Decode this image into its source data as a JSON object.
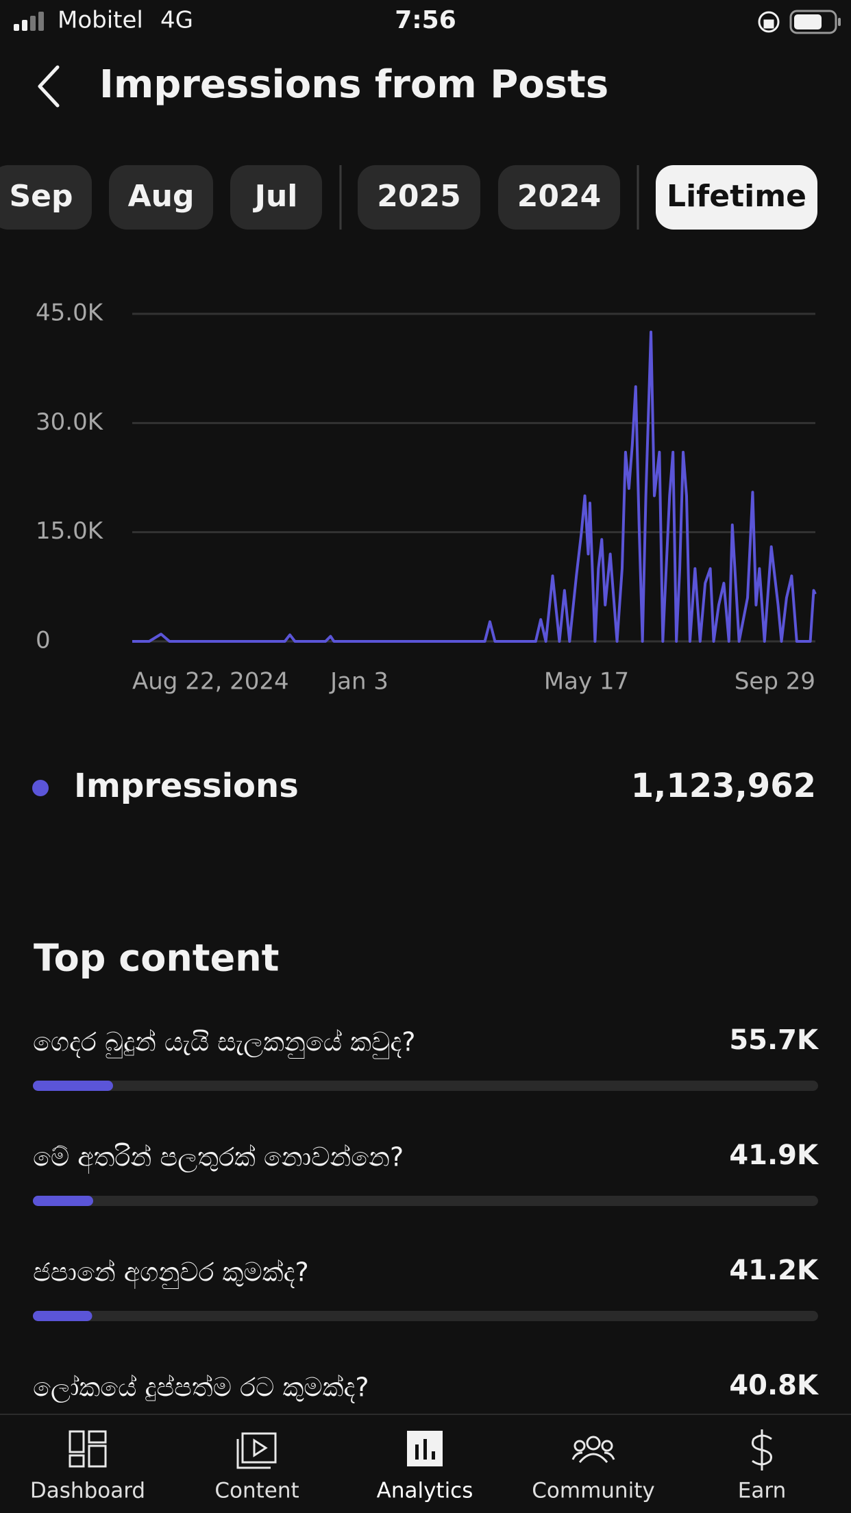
{
  "status_bar": {
    "carrier": "Mobitel",
    "network": "4G",
    "time": "7:56"
  },
  "header": {
    "title": "Impressions from Posts"
  },
  "tabs": [
    "Sep",
    "Aug",
    "Jul",
    "2025",
    "2024",
    "Lifetime"
  ],
  "selected_tab": 5,
  "chart_data": {
    "type": "line",
    "x": [
      0,
      10,
      17,
      22,
      90,
      93,
      96,
      114,
      117,
      119,
      208,
      211,
      214,
      238,
      241,
      244,
      248,
      252,
      255,
      258,
      262,
      265,
      267,
      269,
      270,
      273,
      275,
      277,
      279,
      282,
      284,
      286,
      289,
      291,
      293,
      295,
      297,
      299,
      301,
      303,
      306,
      308,
      311,
      313,
      315,
      317,
      319,
      321,
      323,
      325,
      327,
      329,
      332,
      335,
      338,
      341,
      343,
      346,
      349,
      352,
      354,
      358,
      363,
      366,
      368,
      370,
      373,
      377,
      381,
      383,
      386,
      389,
      392,
      400,
      402,
      403
    ],
    "series": [
      {
        "name": "Impressions",
        "color": "#5b55d8",
        "values": [
          0,
          0,
          1000,
          0,
          0,
          900,
          0,
          0,
          700,
          0,
          0,
          2700,
          0,
          0,
          3000,
          0,
          9000,
          0,
          7000,
          0,
          9000,
          15000,
          20000,
          12000,
          19000,
          0,
          10000,
          14000,
          5000,
          12000,
          6000,
          0,
          10000,
          26000,
          21000,
          27000,
          35000,
          16000,
          0,
          20000,
          42500,
          20000,
          26000,
          0,
          10000,
          20000,
          26000,
          0,
          10000,
          26000,
          20000,
          0,
          10000,
          0,
          8000,
          10000,
          0,
          5000,
          8000,
          0,
          16000,
          0,
          6000,
          20500,
          5000,
          10000,
          0,
          13000,
          5000,
          0,
          6000,
          9000,
          0,
          0,
          7000,
          6500
        ]
      }
    ],
    "xlim": [
      0,
      403
    ],
    "xticks": [
      {
        "value": 0,
        "label": "Aug 22, 2024"
      },
      {
        "value": 134,
        "label": "Jan 3"
      },
      {
        "value": 268,
        "label": "May 17"
      },
      {
        "value": 403,
        "label": "Sep 29"
      }
    ],
    "ylim": [
      0,
      45000
    ],
    "yticks": [
      0,
      {
        "value": 15000,
        "label": "15.0K"
      },
      {
        "value": 30000,
        "label": "30.0K"
      },
      {
        "value": 45000,
        "label": "45.0K"
      }
    ],
    "grid": true
  },
  "summary": {
    "total": "1,123,962"
  },
  "top_content": {
    "title": "Top content",
    "color": "#5b55d8",
    "items": [
      {
        "title": "ගෙදර බුදුන් යැයි සැලකනුයේ කවුද?",
        "value": 55700,
        "value_label": "55.7K"
      },
      {
        "title": "මේ අතරින් පලතුරක් නොවන්නෙ?",
        "value": 41900,
        "value_label": "41.9K"
      },
      {
        "title": "ජපානේ අගනුවර කුමක්ද?",
        "value": 41200,
        "value_label": "41.2K"
      },
      {
        "title": "ලෝකයේ දුප්පත්ම රට කුමක්ද?",
        "value": 40800,
        "value_label": "40.8K"
      }
    ]
  },
  "nav": [
    "Dashboard",
    "Content",
    "Analytics",
    "Community",
    "Earn"
  ],
  "nav_active": 2
}
